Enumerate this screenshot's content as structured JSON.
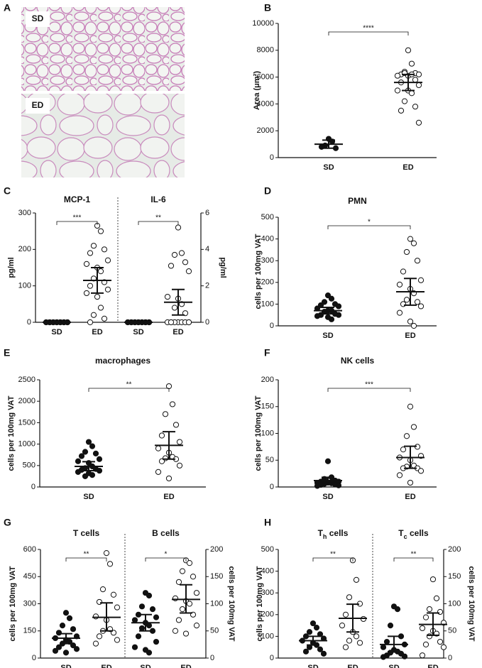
{
  "panel_a": {
    "label": "A",
    "images": [
      "SD",
      "ED"
    ]
  },
  "chart_data": [
    {
      "type": "dotplot",
      "label": "B",
      "ylabel": "Area (μm²)",
      "ylim": [
        0,
        10000
      ],
      "yticks": [
        0,
        2000,
        4000,
        6000,
        8000,
        10000
      ],
      "categories": [
        "SD",
        "ED"
      ],
      "significance": [
        "****"
      ],
      "groups": [
        {
          "marker": "filled",
          "values": [
            1400,
            1200,
            900,
            700,
            800
          ],
          "mean": 1000,
          "lower": 700,
          "upper": 1300
        },
        {
          "marker": "open",
          "values": [
            8000,
            7000,
            6400,
            6300,
            6200,
            6200,
            6100,
            6100,
            6200,
            6300,
            5800,
            5600,
            5400,
            5000,
            5000,
            4800,
            4200,
            3800,
            3500,
            2600
          ],
          "mean": 5600,
          "lower": 5000,
          "upper": 6200
        }
      ]
    },
    {
      "type": "dotplot",
      "label": "C",
      "subtitles": [
        "MCP-1",
        "IL-6"
      ],
      "ylabel": "pg/ml",
      "y2label": "pg/ml",
      "ylim": [
        0,
        300
      ],
      "yticks": [
        0,
        100,
        200,
        300
      ],
      "y2lim": [
        0,
        6
      ],
      "y2ticks": [
        0,
        2,
        4,
        6
      ],
      "categories": [
        "SD",
        "ED",
        "SD",
        "ED"
      ],
      "significance": [
        "***",
        "**"
      ],
      "groups": [
        {
          "marker": "filled",
          "values": [
            0,
            0,
            0,
            0,
            0,
            0,
            0,
            0,
            0,
            0,
            0,
            0,
            0,
            0,
            0,
            0,
            0,
            0,
            0,
            0
          ],
          "mean": 0,
          "lower": 0,
          "upper": 0
        },
        {
          "marker": "open",
          "values": [
            265,
            250,
            210,
            200,
            190,
            170,
            160,
            150,
            140,
            120,
            110,
            100,
            90,
            80,
            70,
            40,
            20,
            10,
            0
          ],
          "mean": 115,
          "lower": 80,
          "upper": 150
        },
        {
          "marker": "filled",
          "axis": "y2",
          "values": [
            0,
            0,
            0,
            0,
            0,
            0,
            0,
            0,
            0,
            0,
            0,
            0,
            0,
            0,
            0,
            0,
            0,
            0,
            0,
            0
          ],
          "mean": 0,
          "lower": 0,
          "upper": 0
        },
        {
          "marker": "open",
          "axis": "y2",
          "values": [
            5.2,
            3.8,
            3.7,
            3.3,
            3.1,
            2.8,
            1.4,
            1.3,
            1.0,
            0.8,
            0.5,
            0,
            0,
            0,
            0,
            0,
            0,
            0,
            0,
            0
          ],
          "mean": 1.1,
          "lower": 0.4,
          "upper": 1.8
        }
      ]
    },
    {
      "type": "dotplot",
      "label": "D",
      "title": "PMN",
      "ylabel": "cells per 100mg VAT",
      "ylim": [
        0,
        500
      ],
      "yticks": [
        0,
        100,
        200,
        300,
        400,
        500
      ],
      "categories": [
        "SD",
        "ED"
      ],
      "significance": [
        "*"
      ],
      "groups": [
        {
          "marker": "filled",
          "values": [
            140,
            125,
            110,
            100,
            95,
            90,
            80,
            70,
            70,
            65,
            55,
            50,
            50,
            45,
            40,
            30
          ],
          "mean": 70,
          "lower": 55,
          "upper": 85
        },
        {
          "marker": "open",
          "values": [
            400,
            380,
            340,
            300,
            250,
            210,
            190,
            170,
            150,
            120,
            110,
            100,
            90,
            60,
            20,
            0
          ],
          "mean": 157,
          "lower": 95,
          "upper": 218
        }
      ]
    },
    {
      "type": "dotplot",
      "label": "E",
      "title": "macrophages",
      "ylabel": "cells per 100mg VAT",
      "ylim": [
        0,
        2500
      ],
      "yticks": [
        0,
        500,
        1000,
        1500,
        2000,
        2500
      ],
      "categories": [
        "SD",
        "ED"
      ],
      "significance": [
        "**"
      ],
      "groups": [
        {
          "marker": "filled",
          "values": [
            1050,
            950,
            820,
            780,
            720,
            650,
            600,
            560,
            480,
            440,
            420,
            400,
            380,
            350,
            320,
            280,
            250
          ],
          "mean": 480,
          "lower": 380,
          "upper": 590
        },
        {
          "marker": "open",
          "values": [
            2350,
            1930,
            1700,
            1450,
            1200,
            1050,
            900,
            800,
            700,
            670,
            650,
            600,
            500,
            350,
            200
          ],
          "mean": 970,
          "lower": 650,
          "upper": 1290
        }
      ]
    },
    {
      "type": "dotplot",
      "label": "F",
      "title": "NK cells",
      "ylabel": "cells per 100mg VAT",
      "ylim": [
        0,
        200
      ],
      "yticks": [
        0,
        50,
        100,
        150,
        200
      ],
      "categories": [
        "SD",
        "ED"
      ],
      "significance": [
        "***"
      ],
      "groups": [
        {
          "marker": "filled",
          "values": [
            48,
            18,
            15,
            12,
            10,
            10,
            8,
            8,
            7,
            6,
            5,
            4,
            3,
            2
          ],
          "mean": 12,
          "lower": 7,
          "upper": 18
        },
        {
          "marker": "open",
          "values": [
            150,
            112,
            95,
            75,
            70,
            58,
            55,
            50,
            40,
            38,
            35,
            35,
            30,
            22,
            8
          ],
          "mean": 55,
          "lower": 35,
          "upper": 76
        }
      ]
    },
    {
      "type": "dotplot",
      "label": "G",
      "subtitles": [
        "T cells",
        "B cells"
      ],
      "ylabel": "cells per 100mg VAT",
      "y2label": "cells per 100mg VAT",
      "ylim": [
        0,
        600
      ],
      "yticks": [
        0,
        150,
        300,
        450,
        600
      ],
      "y2lim": [
        0,
        200
      ],
      "y2ticks": [
        0,
        50,
        100,
        150,
        200
      ],
      "categories": [
        "SD",
        "ED",
        "SD",
        "ED"
      ],
      "significance": [
        "**",
        "*"
      ],
      "groups": [
        {
          "marker": "filled",
          "values": [
            250,
            220,
            180,
            160,
            140,
            120,
            110,
            100,
            90,
            80,
            70,
            60,
            50,
            40,
            30
          ],
          "mean": 110,
          "lower": 80,
          "upper": 135
        },
        {
          "marker": "open",
          "values": [
            580,
            520,
            380,
            350,
            310,
            280,
            230,
            210,
            160,
            150,
            140,
            120,
            100,
            80
          ],
          "mean": 225,
          "lower": 150,
          "upper": 305
        },
        {
          "marker": "filled",
          "axis": "y2",
          "values": [
            120,
            115,
            95,
            90,
            80,
            75,
            70,
            65,
            60,
            55,
            50,
            40,
            30,
            20,
            15,
            10
          ],
          "mean": 65,
          "lower": 50,
          "upper": 80
        },
        {
          "marker": "open",
          "axis": "y2",
          "values": [
            180,
            175,
            160,
            150,
            140,
            120,
            110,
            105,
            100,
            90,
            80,
            70,
            60,
            50,
            45
          ],
          "mean": 108,
          "lower": 83,
          "upper": 135
        }
      ]
    },
    {
      "type": "dotplot",
      "label": "H",
      "subtitles": [
        {
          "parts": [
            "T",
            "h",
            " cells"
          ]
        },
        {
          "parts": [
            "T",
            "c",
            " cells"
          ]
        }
      ],
      "ylabel": "cells per 100mg VAT",
      "y2label": "cells per 100mg VAT",
      "ylim": [
        0,
        500
      ],
      "yticks": [
        0,
        100,
        200,
        300,
        400,
        500
      ],
      "y2lim": [
        0,
        200
      ],
      "y2ticks": [
        0,
        50,
        100,
        150,
        200
      ],
      "categories": [
        "SD",
        "ED",
        "SD",
        "ED"
      ],
      "significance": [
        "**",
        "**"
      ],
      "groups": [
        {
          "marker": "filled",
          "values": [
            160,
            140,
            120,
            110,
            100,
            90,
            80,
            70,
            60,
            50,
            40,
            30,
            20
          ],
          "mean": 80,
          "lower": 60,
          "upper": 100
        },
        {
          "marker": "open",
          "values": [
            450,
            360,
            280,
            250,
            200,
            180,
            150,
            120,
            100,
            80,
            70,
            50
          ],
          "mean": 183,
          "lower": 120,
          "upper": 248
        },
        {
          "marker": "filled",
          "axis": "y2",
          "values": [
            95,
            90,
            60,
            40,
            30,
            25,
            20,
            15,
            12,
            10,
            8,
            5,
            3,
            2
          ],
          "mean": 25,
          "lower": 12,
          "upper": 40
        },
        {
          "marker": "open",
          "axis": "y2",
          "values": [
            145,
            110,
            90,
            85,
            75,
            65,
            55,
            50,
            45,
            40,
            30,
            25,
            20,
            5
          ],
          "mean": 62,
          "lower": 42,
          "upper": 83
        }
      ]
    }
  ]
}
